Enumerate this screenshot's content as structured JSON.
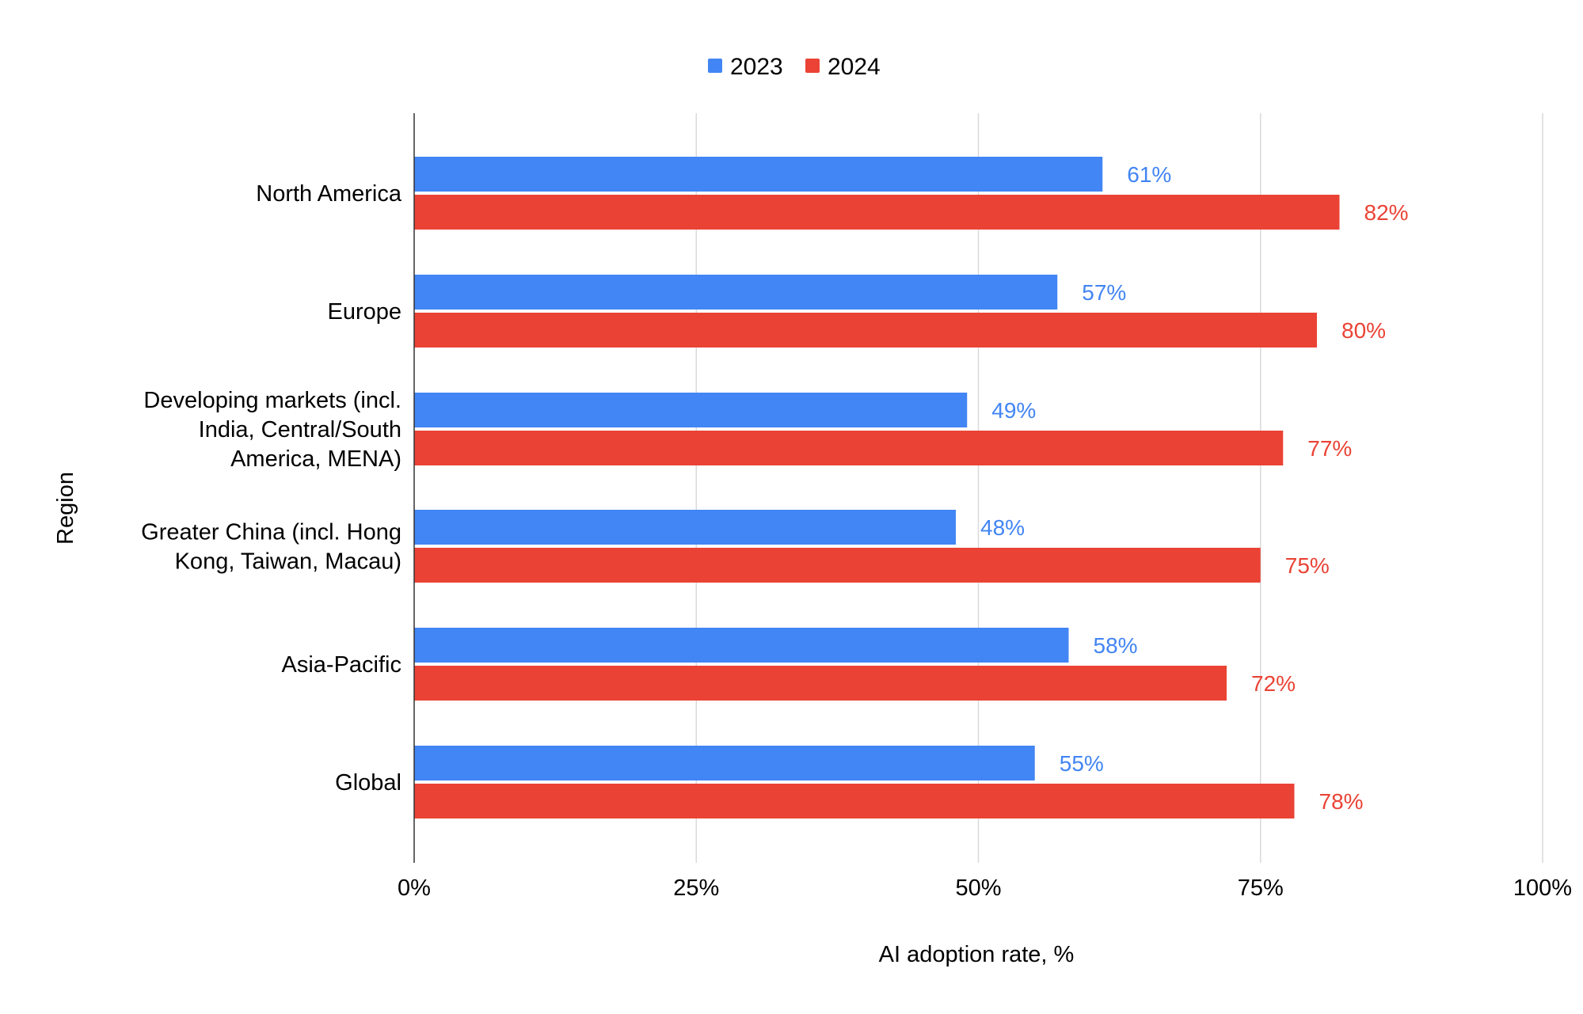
{
  "chart_data": {
    "type": "bar",
    "orientation": "horizontal",
    "title": "",
    "xlabel": "AI adoption rate, %",
    "ylabel": "Region",
    "xlim": [
      0,
      100
    ],
    "xticks": [
      0,
      25,
      50,
      75,
      100
    ],
    "xtick_labels": [
      "0%",
      "25%",
      "50%",
      "75%",
      "100%"
    ],
    "grid": true,
    "legend_position": "top-center",
    "categories": [
      [
        "North America"
      ],
      [
        "Europe"
      ],
      [
        "Developing markets (incl.",
        "India, Central/South",
        "America, MENA)"
      ],
      [
        "Greater China (incl. Hong",
        "Kong, Taiwan, Macau)"
      ],
      [
        "Asia-Pacific"
      ],
      [
        "Global"
      ]
    ],
    "series": [
      {
        "name": "2023",
        "color": "#4285F4",
        "values": [
          61,
          57,
          49,
          48,
          58,
          55
        ],
        "labels": [
          "61%",
          "57%",
          "49%",
          "48%",
          "58%",
          "55%"
        ]
      },
      {
        "name": "2024",
        "color": "#EA4335",
        "values": [
          82,
          80,
          77,
          75,
          72,
          78
        ],
        "labels": [
          "82%",
          "80%",
          "77%",
          "75%",
          "72%",
          "78%"
        ]
      }
    ]
  }
}
